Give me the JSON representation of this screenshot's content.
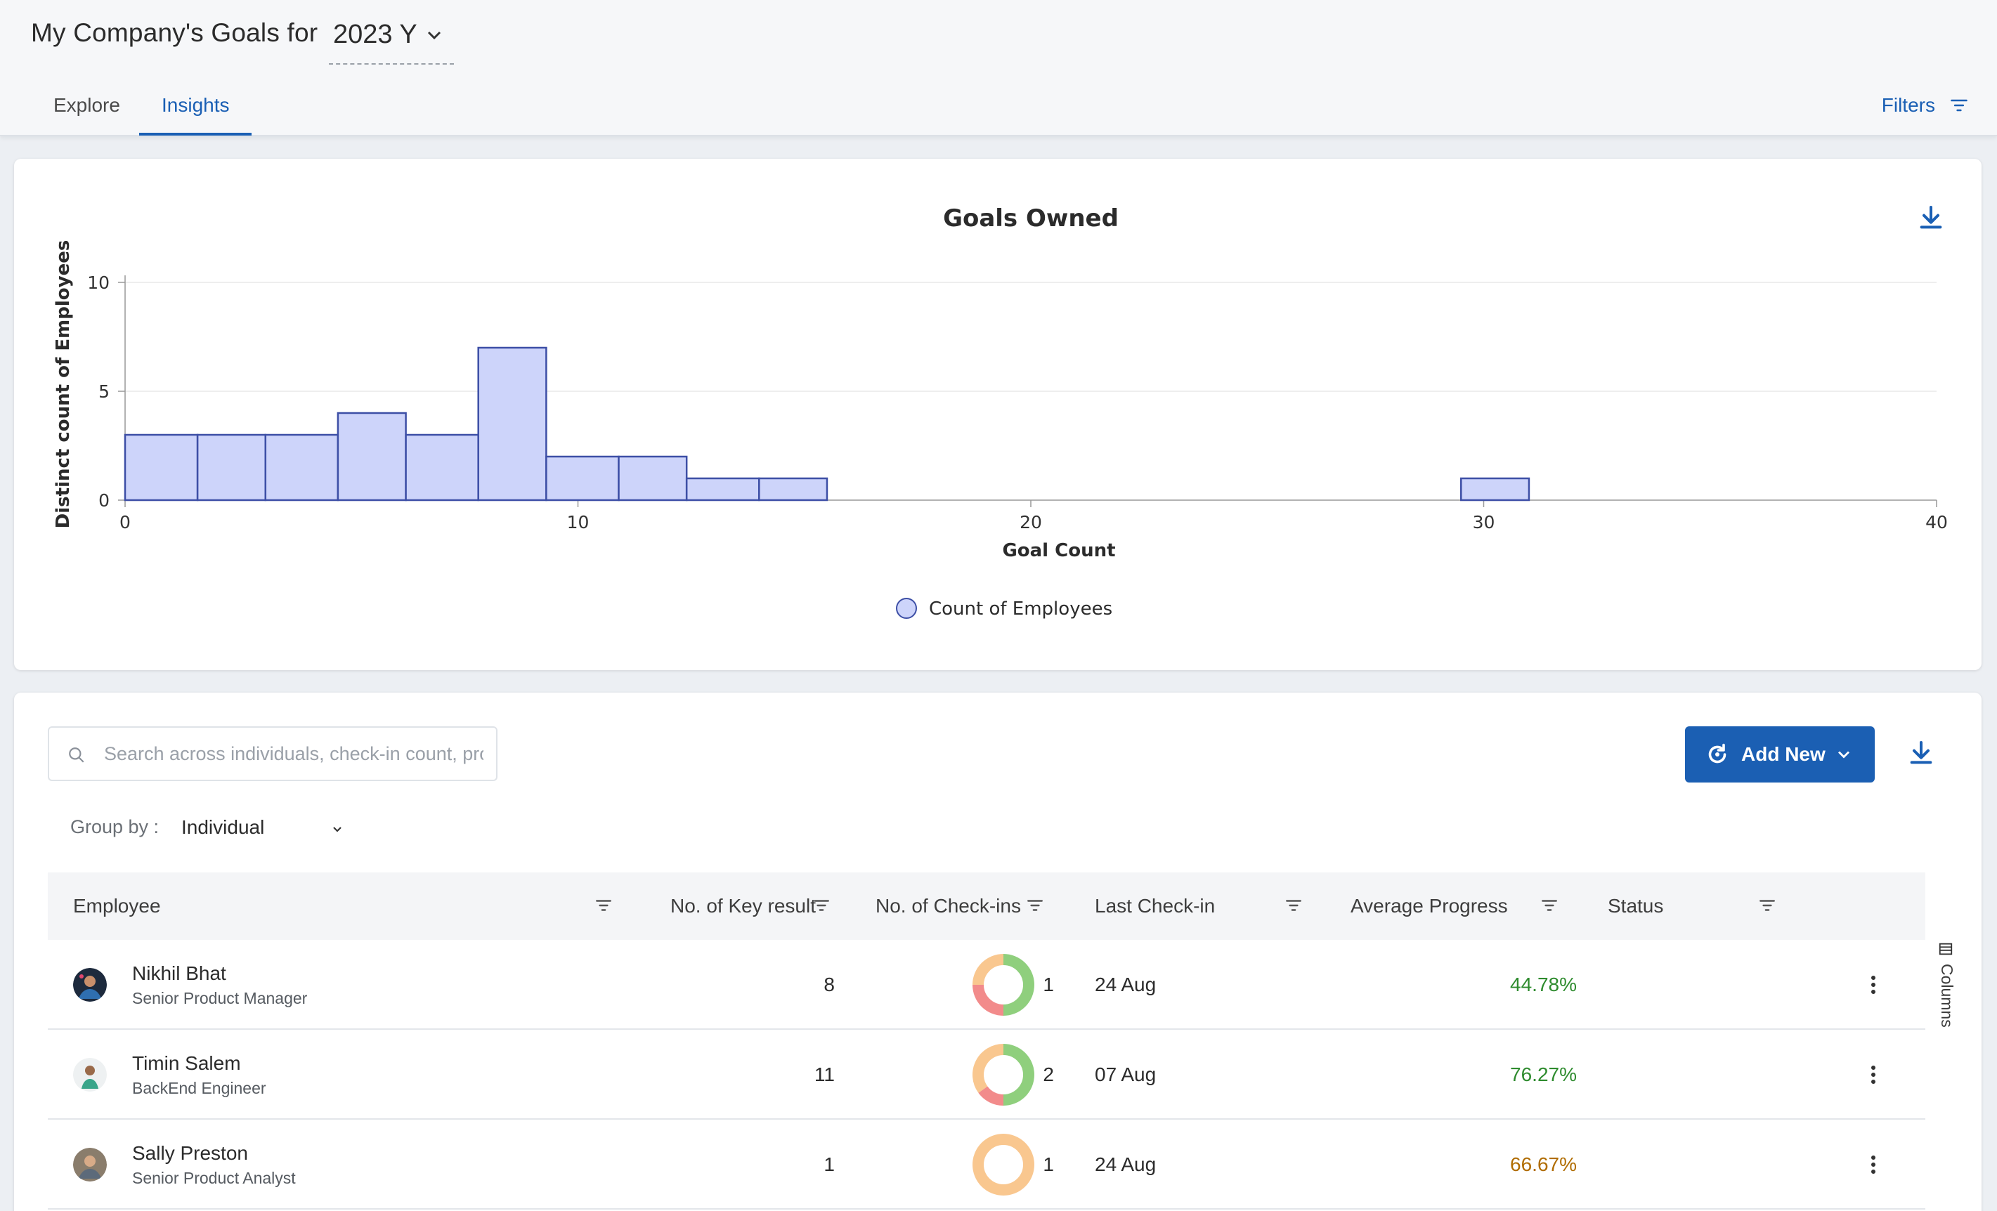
{
  "header": {
    "title": "My Company's Goals for",
    "year": "2023 Y",
    "tabs": [
      {
        "label": "Explore",
        "active": false
      },
      {
        "label": "Insights",
        "active": true
      }
    ],
    "filters_label": "Filters"
  },
  "colors": {
    "accent": "#1a5fb4",
    "bar_fill": "#cdd4fa",
    "bar_stroke": "#3d4fa6",
    "progress_green": "#2e8b2e",
    "progress_amber": "#b06c00",
    "donut_green": "#8fcf7d",
    "donut_red": "#f28b8b",
    "donut_orange": "#f9c78f"
  },
  "chart_data": {
    "type": "bar",
    "title": "Goals Owned",
    "xlabel": "Goal Count",
    "ylabel": "Distinct count of Employees",
    "xlim": [
      0,
      40
    ],
    "ylim": [
      0,
      10
    ],
    "x_ticks": [
      0,
      10,
      20,
      30,
      40
    ],
    "y_ticks": [
      0,
      5,
      10
    ],
    "legend": "Count of Employees",
    "legend_position": "bottom",
    "grid": true,
    "bins": [
      {
        "start": 0.0,
        "end": 1.6,
        "value": 3
      },
      {
        "start": 1.6,
        "end": 3.1,
        "value": 3
      },
      {
        "start": 3.1,
        "end": 4.7,
        "value": 3
      },
      {
        "start": 4.7,
        "end": 6.2,
        "value": 4
      },
      {
        "start": 6.2,
        "end": 7.8,
        "value": 3
      },
      {
        "start": 7.8,
        "end": 9.3,
        "value": 7
      },
      {
        "start": 9.3,
        "end": 10.9,
        "value": 2
      },
      {
        "start": 10.9,
        "end": 12.4,
        "value": 2
      },
      {
        "start": 12.4,
        "end": 14.0,
        "value": 1
      },
      {
        "start": 14.0,
        "end": 15.5,
        "value": 1
      },
      {
        "start": 29.5,
        "end": 31.0,
        "value": 1
      }
    ]
  },
  "table": {
    "search_placeholder": "Search across individuals, check-in count, pro",
    "add_new_label": "Add New",
    "group_by_label": "Group by :",
    "group_by_value": "Individual",
    "columns_label": "Columns",
    "headers": {
      "employee": "Employee",
      "key_results": "No. of Key result",
      "checkins": "No. of Check-ins",
      "last_checkin": "Last Check-in",
      "avg_progress": "Average Progress",
      "status": "Status"
    },
    "rows": [
      {
        "name": "Nikhil Bhat",
        "role": "Senior Product Manager",
        "key_results": "8",
        "checkins": "1",
        "last_checkin": "24 Aug",
        "avg_progress": "44.78%",
        "progress_color": "green",
        "status": {
          "green": 0.5,
          "red": 0.25,
          "orange": 0.25
        }
      },
      {
        "name": "Timin Salem",
        "role": "BackEnd Engineer",
        "key_results": "11",
        "checkins": "2",
        "last_checkin": "07 Aug",
        "avg_progress": "76.27%",
        "progress_color": "green",
        "status": {
          "green": 0.5,
          "red": 0.15,
          "orange": 0.35
        }
      },
      {
        "name": "Sally Preston",
        "role": "Senior Product Analyst",
        "key_results": "1",
        "checkins": "1",
        "last_checkin": "24 Aug",
        "avg_progress": "66.67%",
        "progress_color": "amber",
        "status": {
          "green": 0,
          "red": 0,
          "orange": 1
        }
      }
    ]
  }
}
